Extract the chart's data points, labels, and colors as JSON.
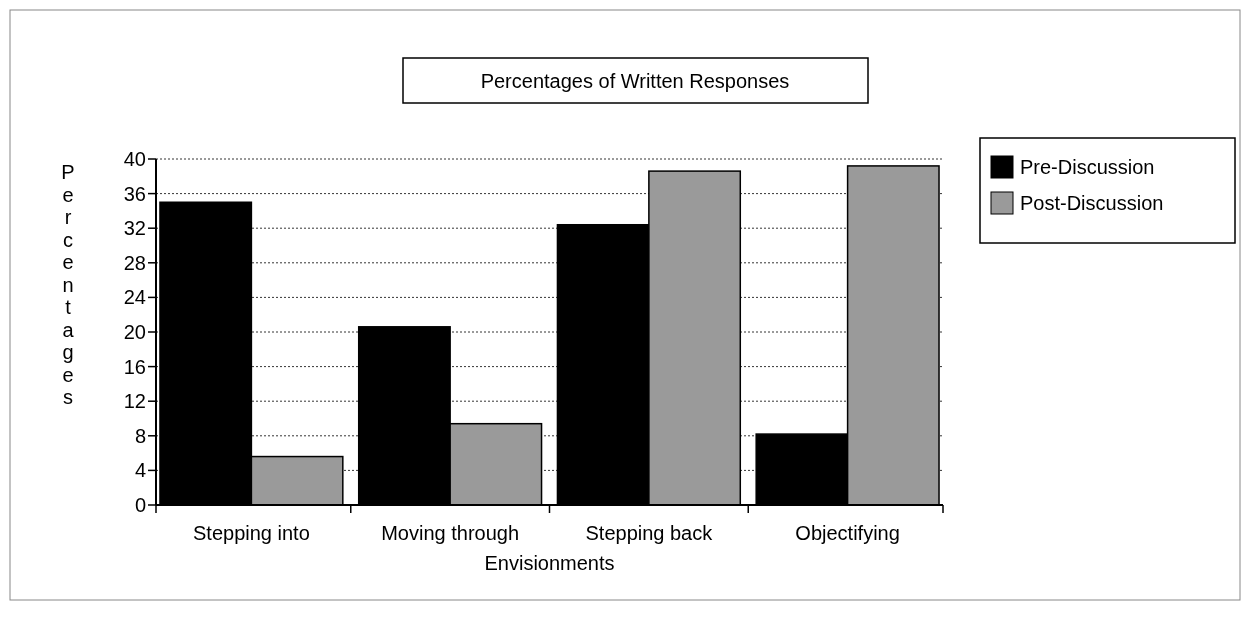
{
  "chart_data": {
    "type": "bar",
    "title": "Percentages of Written Responses",
    "xlabel": "Envisionments",
    "ylabel": "Percentages",
    "categories": [
      "Stepping into",
      "Moving through",
      "Stepping back",
      "Objectifying"
    ],
    "series": [
      {
        "name": "Pre-Discussion",
        "color": "#000000",
        "values": [
          35,
          20.6,
          32.4,
          8.2
        ]
      },
      {
        "name": "Post-Discussion",
        "color": "#9a9a9a",
        "values": [
          5.6,
          9.4,
          38.6,
          39.2
        ]
      }
    ],
    "ylim": [
      0,
      40
    ],
    "yticks": [
      0,
      4,
      8,
      12,
      16,
      20,
      24,
      28,
      32,
      36,
      40
    ],
    "grid": "y",
    "legend": "top right"
  }
}
